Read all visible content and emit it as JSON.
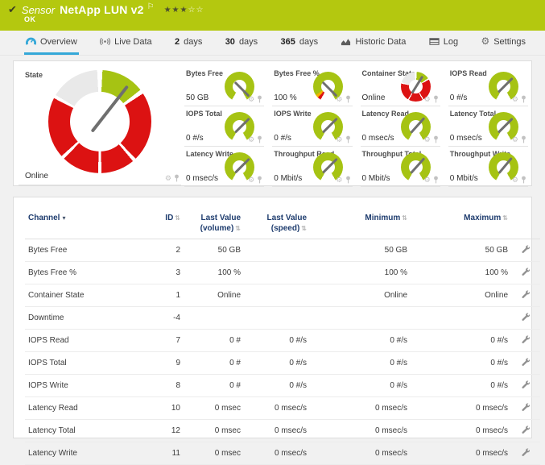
{
  "colors": {
    "status_ok": "#b4c80f",
    "gauge_green": "#a6c313",
    "gauge_red": "#dc1212",
    "gauge_gray": "#e9e9e9",
    "gauge_yellow": "#f2b200",
    "accent_blue": "#35a8d8",
    "table_header": "#1e3c6e"
  },
  "header": {
    "kind": "Sensor",
    "title": "NetApp LUN v2",
    "status": "OK",
    "stars_filled": 3,
    "stars_total": 5
  },
  "tabs": {
    "overview": "Overview",
    "live_data": "Live Data",
    "d2_num": "2",
    "d2_word": "days",
    "d30_num": "30",
    "d30_word": "days",
    "d365_num": "365",
    "d365_word": "days",
    "historic": "Historic Data",
    "log": "Log",
    "settings": "Settings"
  },
  "state_gauge": {
    "label": "State",
    "value": "Online",
    "needle_deg": 38
  },
  "gauges": [
    {
      "label": "Bytes Free",
      "value": "50 GB",
      "type": "plain",
      "needle_deg": 135
    },
    {
      "label": "Bytes Free %",
      "value": "100 %",
      "type": "percent",
      "needle_deg": 135
    },
    {
      "label": "Container State",
      "value": "Online",
      "type": "state",
      "needle_deg": 32
    },
    {
      "label": "IOPS Read",
      "value": "0 #/s",
      "type": "plain",
      "needle_deg": 45
    },
    {
      "label": "IOPS Total",
      "value": "0 #/s",
      "type": "plain",
      "needle_deg": 45
    },
    {
      "label": "IOPS Write",
      "value": "0 #/s",
      "type": "plain",
      "needle_deg": 45
    },
    {
      "label": "Latency Read",
      "value": "0 msec/s",
      "type": "plain",
      "needle_deg": 42
    },
    {
      "label": "Latency Total",
      "value": "0 msec/s",
      "type": "plain",
      "needle_deg": 45
    },
    {
      "label": "Latency Write",
      "value": "0 msec/s",
      "type": "plain",
      "needle_deg": 45
    },
    {
      "label": "Throughput Read",
      "value": "0 Mbit/s",
      "type": "plain",
      "needle_deg": 45
    },
    {
      "label": "Throughput Total",
      "value": "0 Mbit/s",
      "type": "plain",
      "needle_deg": 42
    },
    {
      "label": "Throughput Write",
      "value": "0 Mbit/s",
      "type": "plain",
      "needle_deg": 40
    }
  ],
  "table": {
    "headers": {
      "channel": "Channel",
      "id": "ID",
      "last_value_volume_1": "Last Value",
      "last_value_volume_2": "(volume)",
      "last_value_speed_1": "Last Value",
      "last_value_speed_2": "(speed)",
      "minimum": "Minimum",
      "maximum": "Maximum"
    },
    "rows": [
      {
        "channel": "Bytes Free",
        "id": "2",
        "lv_volume": "50 GB",
        "lv_speed": "",
        "min": "50 GB",
        "max": "50 GB"
      },
      {
        "channel": "Bytes Free %",
        "id": "3",
        "lv_volume": "100 %",
        "lv_speed": "",
        "min": "100 %",
        "max": "100 %"
      },
      {
        "channel": "Container State",
        "id": "1",
        "lv_volume": "Online",
        "lv_speed": "",
        "min": "Online",
        "max": "Online"
      },
      {
        "channel": "Downtime",
        "id": "-4",
        "lv_volume": "",
        "lv_speed": "",
        "min": "",
        "max": ""
      },
      {
        "channel": "IOPS Read",
        "id": "7",
        "lv_volume": "0 #",
        "lv_speed": "0 #/s",
        "min": "0 #/s",
        "max": "0 #/s"
      },
      {
        "channel": "IOPS Total",
        "id": "9",
        "lv_volume": "0 #",
        "lv_speed": "0 #/s",
        "min": "0 #/s",
        "max": "0 #/s"
      },
      {
        "channel": "IOPS Write",
        "id": "8",
        "lv_volume": "0 #",
        "lv_speed": "0 #/s",
        "min": "0 #/s",
        "max": "0 #/s"
      },
      {
        "channel": "Latency Read",
        "id": "10",
        "lv_volume": "0 msec",
        "lv_speed": "0 msec/s",
        "min": "0 msec/s",
        "max": "0 msec/s"
      },
      {
        "channel": "Latency Total",
        "id": "12",
        "lv_volume": "0 msec",
        "lv_speed": "0 msec/s",
        "min": "0 msec/s",
        "max": "0 msec/s"
      },
      {
        "channel": "Latency Write",
        "id": "11",
        "lv_volume": "0 msec",
        "lv_speed": "0 msec/s",
        "min": "0 msec/s",
        "max": "0 msec/s"
      }
    ]
  }
}
